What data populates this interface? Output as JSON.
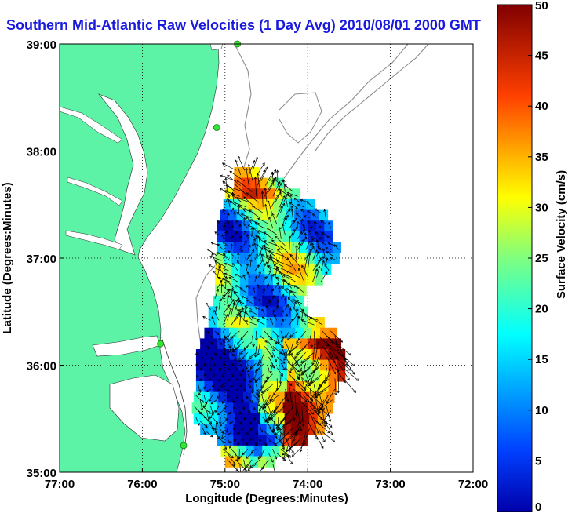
{
  "title": "Southern Mid-Atlantic Raw Velocities (1 Day Avg) 2010/08/01 2000 GMT",
  "chart_data": {
    "type": "heatmap",
    "title": "Southern Mid-Atlantic Raw Velocities (1 Day Avg) 2010/08/01 2000 GMT",
    "xlabel": "Longitude (Degrees:Minutes)",
    "ylabel": "Latitude (Degrees:Minutes)",
    "xlim": [
      -77,
      -72
    ],
    "ylim": [
      35,
      39
    ],
    "x_ticks": [
      {
        "value": -77,
        "label": "77:00"
      },
      {
        "value": -76,
        "label": "76:00"
      },
      {
        "value": -75,
        "label": "75:00"
      },
      {
        "value": -74,
        "label": "74:00"
      },
      {
        "value": -73,
        "label": "73:00"
      },
      {
        "value": -72,
        "label": "72:00"
      }
    ],
    "y_ticks": [
      {
        "value": 35,
        "label": "35:00"
      },
      {
        "value": 36,
        "label": "36:00"
      },
      {
        "value": 37,
        "label": "37:00"
      },
      {
        "value": 38,
        "label": "38:00"
      },
      {
        "value": 39,
        "label": "39:00"
      }
    ],
    "grid": true,
    "colorbar": {
      "label": "Surface Velocity (cm/s)",
      "min": 0,
      "max": 50,
      "ticks": [
        "0",
        "5",
        "10",
        "15",
        "20",
        "25",
        "30",
        "35",
        "40",
        "45",
        "50"
      ],
      "colormap": "jet"
    },
    "land_color": "#5cf3a6",
    "stations": [
      {
        "lon": -74.85,
        "lat": 39.0
      },
      {
        "lon": -75.1,
        "lat": 38.22
      },
      {
        "lon": -75.78,
        "lat": 36.2
      },
      {
        "lon": -75.5,
        "lat": 35.25
      }
    ]
  }
}
